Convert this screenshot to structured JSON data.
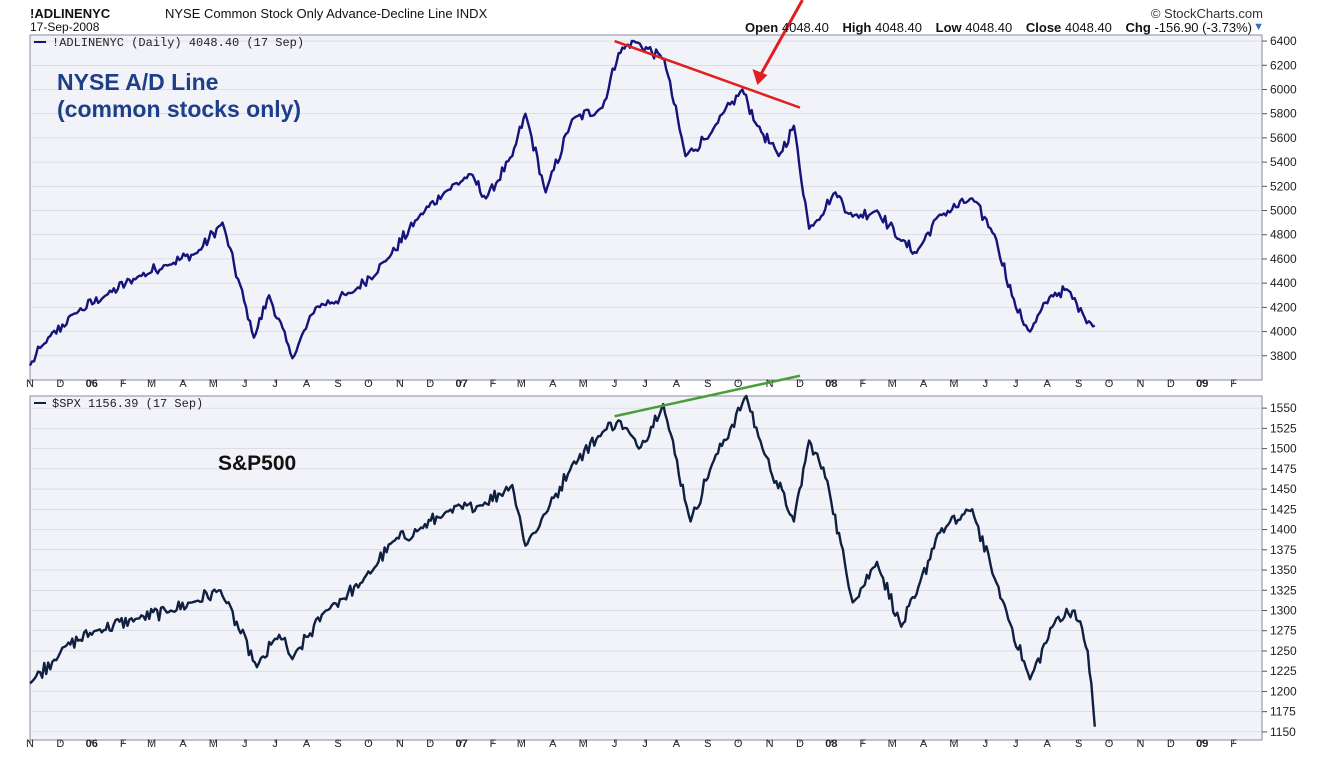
{
  "header": {
    "symbol": "!ADLINENYC",
    "description": "NYSE Common Stock Only Advance-Decline Line  INDX",
    "date": "17-Sep-2008",
    "credit": "© StockCharts.com",
    "open_label": "Open",
    "open_value": "4048.40",
    "high_label": "High",
    "high_value": "4048.40",
    "low_label": "Low",
    "low_value": "4048.40",
    "close_label": "Close",
    "close_value": "4048.40",
    "chg_label": "Chg",
    "chg_value": "-156.90 (-3.73%)"
  },
  "colors": {
    "panel_bg": "#f2f2f9",
    "adline": "#14147a",
    "spx": "#102040",
    "divergence_red": "#e02020",
    "divergence_green": "#4a9e3a",
    "grid": "#c8c8d8"
  },
  "chart_data": [
    {
      "type": "line",
      "legend": "!ADLINENYC (Daily) 4048.40 (17 Sep)",
      "annotation": [
        "NYSE A/D Line",
        "(common stocks only)"
      ],
      "x_tick_labels": [
        "N",
        "D",
        "06",
        "F",
        "M",
        "A",
        "M",
        "J",
        "J",
        "A",
        "S",
        "O",
        "N",
        "D",
        "07",
        "F",
        "M",
        "A",
        "M",
        "J",
        "J",
        "A",
        "S",
        "O",
        "N",
        "D",
        "08",
        "F",
        "M",
        "A",
        "M",
        "J",
        "J",
        "A",
        "S",
        "O",
        "N",
        "D",
        "09",
        "F"
      ],
      "y_tick_labels": [
        "6400",
        "6200",
        "6000",
        "5800",
        "5600",
        "5400",
        "5200",
        "5000",
        "4800",
        "4600",
        "4400",
        "4200",
        "4000",
        "3800"
      ],
      "ylim": [
        3600,
        6450
      ],
      "x": [
        "2005-11-01",
        "2005-11-15",
        "2005-12-15",
        "2006-01-15",
        "2006-02-15",
        "2006-03-15",
        "2006-04-15",
        "2006-05-10",
        "2006-06-10",
        "2006-06-25",
        "2006-07-18",
        "2006-08-10",
        "2006-09-15",
        "2006-10-20",
        "2006-11-20",
        "2006-12-15",
        "2007-01-10",
        "2007-01-25",
        "2007-02-20",
        "2007-03-05",
        "2007-03-25",
        "2007-04-20",
        "2007-05-20",
        "2007-06-05",
        "2007-06-20",
        "2007-07-20",
        "2007-08-10",
        "2007-09-05",
        "2007-10-05",
        "2007-10-20",
        "2007-11-10",
        "2007-11-25",
        "2007-12-10",
        "2008-01-05",
        "2008-01-22",
        "2008-02-15",
        "2008-03-10",
        "2008-03-25",
        "2008-04-15",
        "2008-05-19",
        "2008-06-10",
        "2008-07-01",
        "2008-07-15",
        "2008-08-05",
        "2008-08-20",
        "2008-09-05",
        "2008-09-17"
      ],
      "values": [
        3720,
        3900,
        4150,
        4300,
        4450,
        4550,
        4650,
        4900,
        3950,
        4300,
        3780,
        4200,
        4320,
        4600,
        4950,
        5150,
        5300,
        5100,
        5450,
        5800,
        5150,
        5750,
        5850,
        6300,
        6400,
        6250,
        5450,
        5650,
        6000,
        5700,
        5450,
        5700,
        4850,
        5150,
        4950,
        5000,
        4750,
        4650,
        4950,
        5100,
        4800,
        4200,
        4000,
        4300,
        4350,
        4150,
        4048.4
      ],
      "trendline": {
        "x": [
          "2007-06-01",
          "2007-12-01"
        ],
        "values": [
          6400,
          5850
        ]
      },
      "arrow": {
        "x": "2007-10-20",
        "value": 6020
      }
    },
    {
      "type": "line",
      "legend": "$SPX 1156.39 (17 Sep)",
      "annotation": [
        "S&P500"
      ],
      "x_tick_labels": [
        "N",
        "D",
        "06",
        "F",
        "M",
        "A",
        "M",
        "J",
        "J",
        "A",
        "S",
        "O",
        "N",
        "D",
        "07",
        "F",
        "M",
        "A",
        "M",
        "J",
        "J",
        "A",
        "S",
        "O",
        "N",
        "D",
        "08",
        "F",
        "M",
        "A",
        "M",
        "J",
        "J",
        "A",
        "S",
        "O",
        "N",
        "D",
        "09",
        "F"
      ],
      "y_tick_labels": [
        "1550",
        "1525",
        "1500",
        "1475",
        "1450",
        "1425",
        "1400",
        "1375",
        "1350",
        "1325",
        "1300",
        "1275",
        "1250",
        "1225",
        "1200",
        "1175",
        "1150"
      ],
      "ylim": [
        1140,
        1565
      ],
      "x": [
        "2005-11-01",
        "2005-12-05",
        "2006-01-05",
        "2006-02-15",
        "2006-03-20",
        "2006-04-10",
        "2006-05-08",
        "2006-06-13",
        "2006-07-05",
        "2006-07-18",
        "2006-08-20",
        "2006-09-25",
        "2006-10-25",
        "2006-11-20",
        "2006-12-15",
        "2007-01-20",
        "2007-02-20",
        "2007-03-05",
        "2007-03-25",
        "2007-04-20",
        "2007-05-20",
        "2007-06-05",
        "2007-06-25",
        "2007-07-19",
        "2007-08-15",
        "2007-09-05",
        "2007-10-09",
        "2007-10-25",
        "2007-11-25",
        "2007-12-10",
        "2007-12-28",
        "2008-01-22",
        "2008-02-15",
        "2008-03-10",
        "2008-03-25",
        "2008-04-15",
        "2008-05-19",
        "2008-06-10",
        "2008-07-15",
        "2008-08-10",
        "2008-08-28",
        "2008-09-10",
        "2008-09-17"
      ],
      "values": [
        1210,
        1255,
        1275,
        1290,
        1300,
        1310,
        1325,
        1230,
        1270,
        1240,
        1300,
        1335,
        1385,
        1400,
        1420,
        1430,
        1455,
        1380,
        1420,
        1480,
        1520,
        1535,
        1500,
        1555,
        1410,
        1480,
        1565,
        1500,
        1410,
        1510,
        1460,
        1310,
        1360,
        1280,
        1320,
        1395,
        1425,
        1340,
        1215,
        1290,
        1300,
        1250,
        1156.39
      ],
      "trendline": {
        "x": [
          "2007-06-01",
          "2007-12-01"
        ],
        "values": [
          1540,
          1590
        ]
      }
    }
  ]
}
